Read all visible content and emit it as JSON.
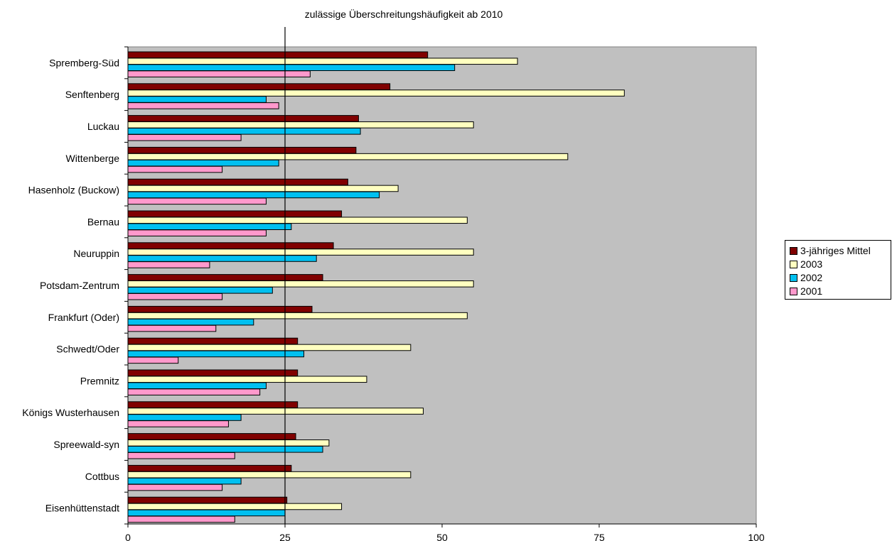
{
  "chart_data": {
    "type": "bar",
    "orientation": "horizontal",
    "categories": [
      "Spremberg-Süd",
      "Senftenberg",
      "Luckau",
      "Wittenberge",
      "Hasenholz (Buckow)",
      "Bernau",
      "Neuruppin",
      "Potsdam-Zentrum",
      "Frankfurt (Oder)",
      "Schwedt/Oder",
      "Premnitz",
      "Königs Wusterhausen",
      "Spreewald-syn",
      "Cottbus",
      "Eisenhüttenstadt"
    ],
    "series": [
      {
        "name": "3-jähriges Mittel",
        "color": "#800000",
        "values": [
          47.7,
          41.7,
          36.7,
          36.3,
          35.0,
          34.0,
          32.7,
          31.0,
          29.3,
          27.0,
          27.0,
          27.0,
          26.7,
          26.0,
          25.3
        ]
      },
      {
        "name": "2003",
        "color": "#FFFFC0",
        "values": [
          62,
          79,
          55,
          70,
          43,
          54,
          55,
          55,
          54,
          45,
          38,
          47,
          32,
          45,
          34
        ]
      },
      {
        "name": "2002",
        "color": "#00C0F0",
        "values": [
          52,
          22,
          37,
          24,
          40,
          26,
          30,
          23,
          20,
          28,
          22,
          18,
          31,
          18,
          25
        ]
      },
      {
        "name": "2001",
        "color": "#FF99CC",
        "values": [
          29,
          24,
          18,
          15,
          22,
          22,
          13,
          15,
          14,
          8,
          21,
          16,
          17,
          15,
          17
        ]
      }
    ],
    "xlim": [
      0,
      100
    ],
    "xticks": [
      "0",
      "25",
      "50",
      "75",
      "100"
    ],
    "reference_line": {
      "value": 25,
      "label": "zulässige Überschreitungshäufigkeit ab 2010"
    },
    "plot_background": "#C0C0C0",
    "legend_position": "right",
    "grid": false
  }
}
